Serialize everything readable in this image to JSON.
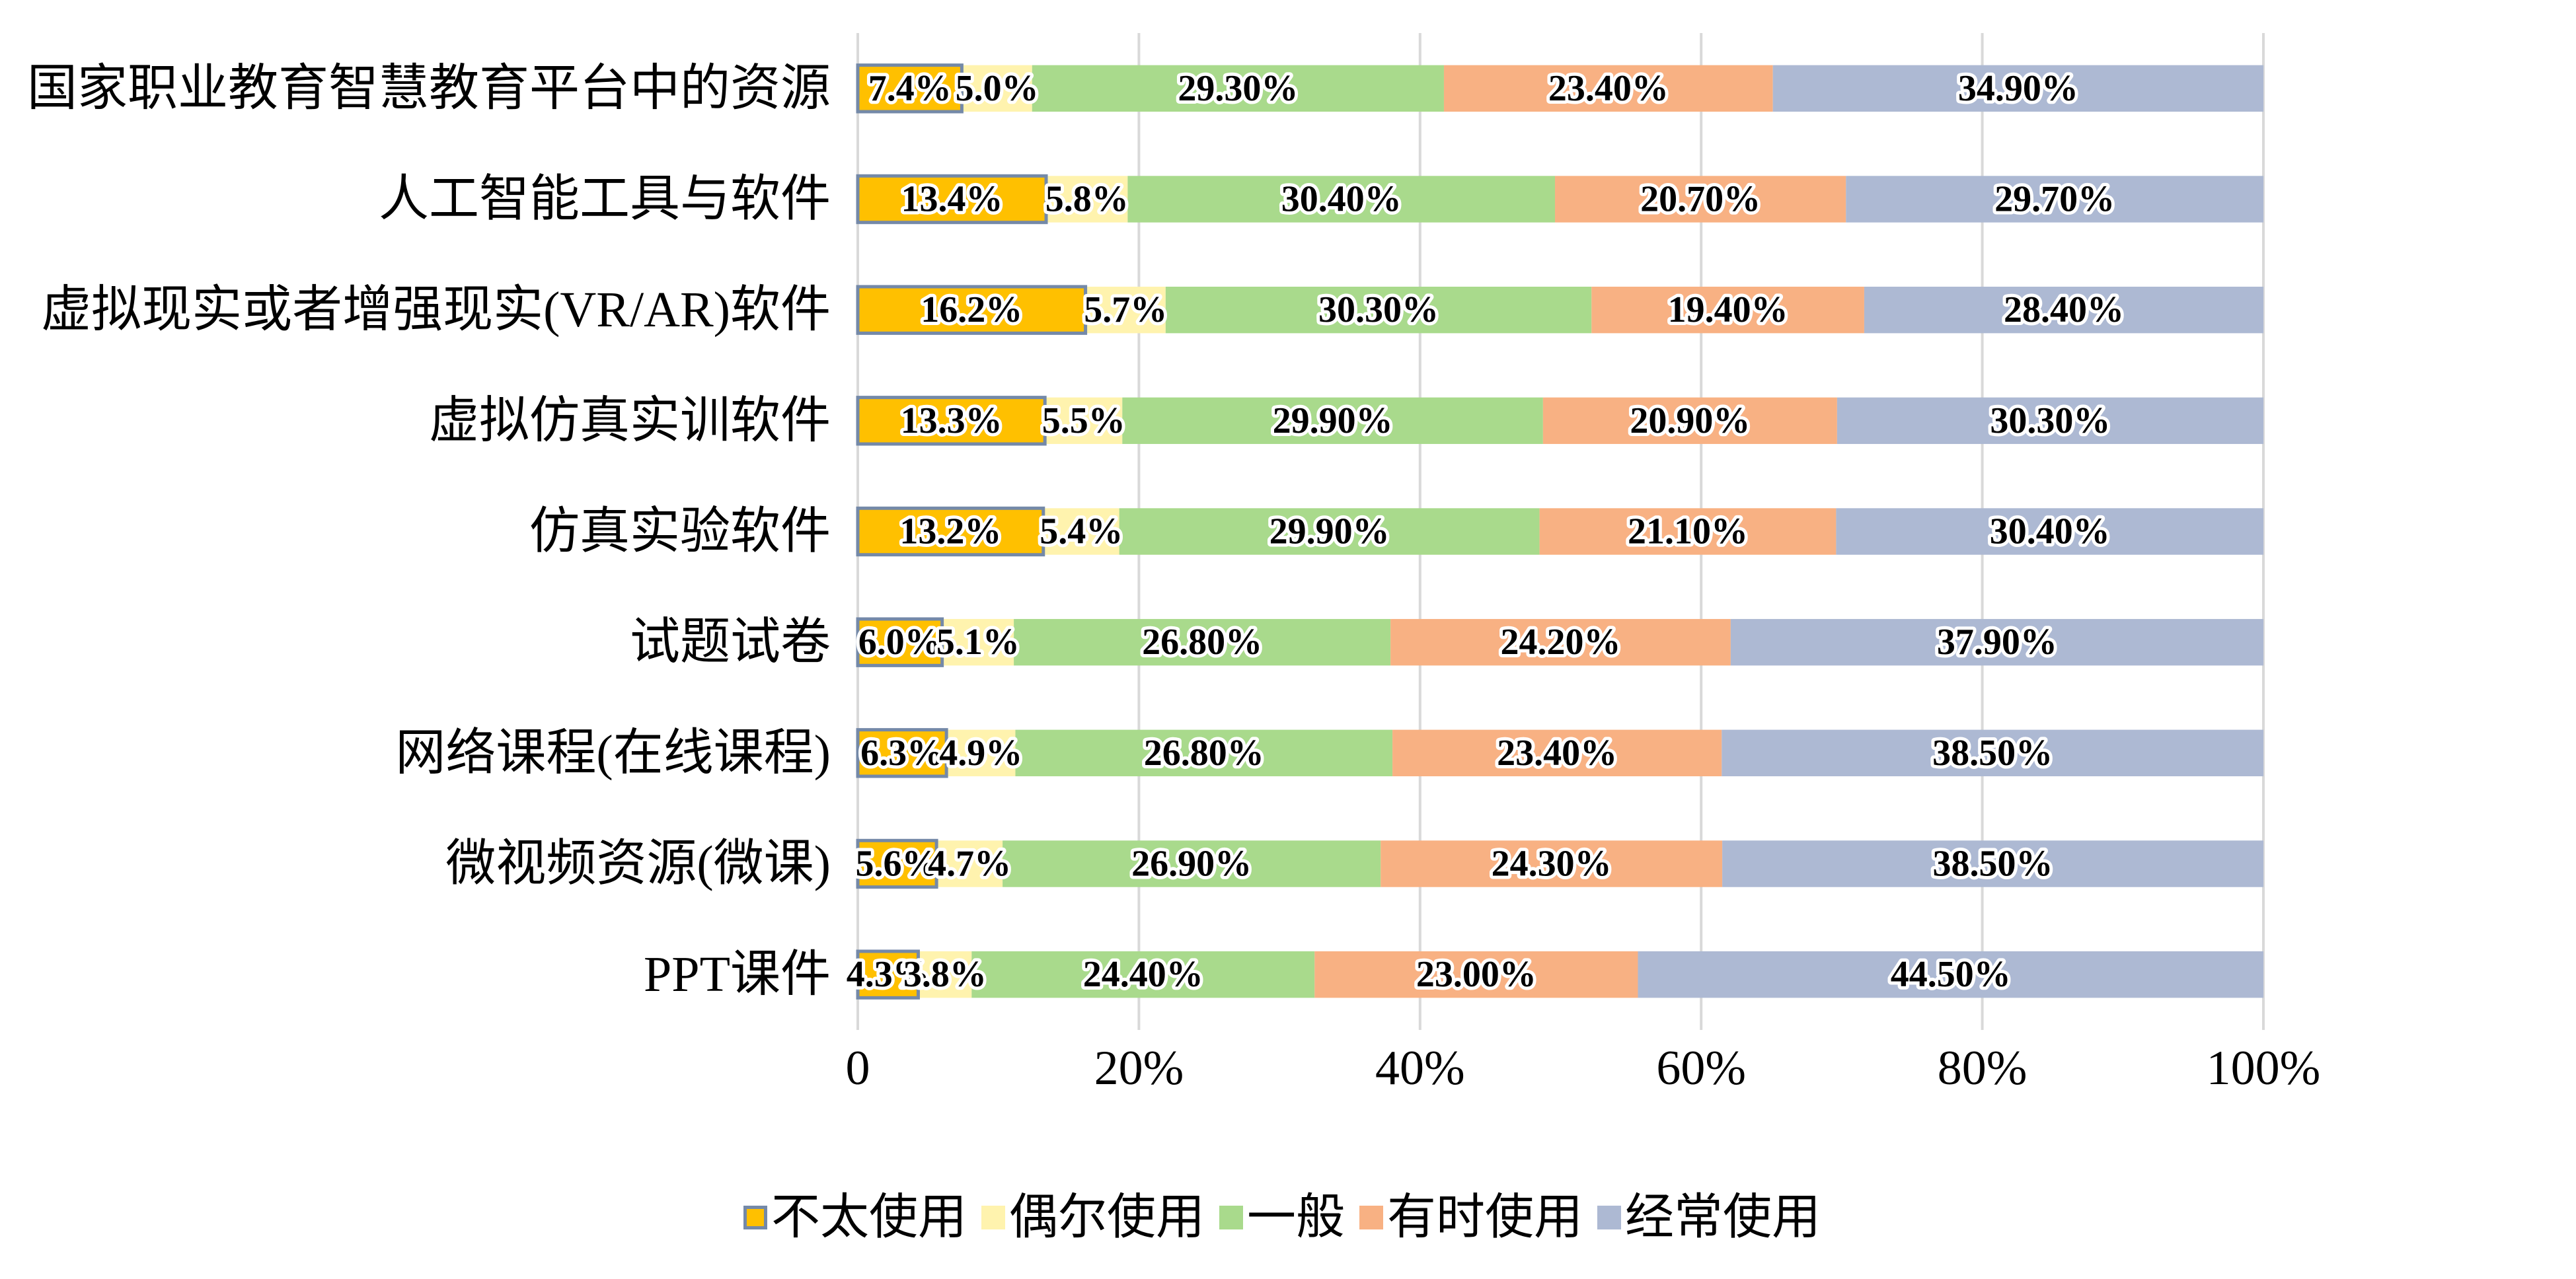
{
  "chart_data": {
    "type": "bar",
    "orientation": "horizontal",
    "stacking": "percent",
    "categories": [
      "国家职业教育智慧教育平台中的资源",
      "人工智能工具与软件",
      "虚拟现实或者增强现实(VR/AR)软件",
      "虚拟仿真实训软件",
      "仿真实验软件",
      "试题试卷",
      "网络课程(在线课程)",
      "微视频资源(微课)",
      "PPT课件"
    ],
    "series": [
      {
        "name": "不太使用",
        "color": "#FFC000",
        "border_color": "#7489A8",
        "values": [
          7.4,
          13.4,
          16.2,
          13.3,
          13.2,
          6.0,
          6.3,
          5.6,
          4.3
        ],
        "labels": [
          "7.4%",
          "13.4%",
          "16.2%",
          "13.3%",
          "13.2%",
          "6.0%",
          "6.3%",
          "5.6%",
          "4.3%"
        ]
      },
      {
        "name": "偶尔使用",
        "color": "#FFF3AE",
        "values": [
          5.0,
          5.8,
          5.7,
          5.5,
          5.4,
          5.1,
          4.9,
          4.7,
          3.8
        ],
        "labels": [
          "5.0%",
          "5.8%",
          "5.7%",
          "5.5%",
          "5.4%",
          "5.1%",
          "4.9%",
          "4.7%",
          "3.8%"
        ]
      },
      {
        "name": "一般",
        "color": "#A9DA8C",
        "values": [
          29.3,
          30.4,
          30.3,
          29.9,
          29.9,
          26.8,
          26.8,
          26.9,
          24.4
        ],
        "labels": [
          "29.30%",
          "30.40%",
          "30.30%",
          "29.90%",
          "29.90%",
          "26.80%",
          "26.80%",
          "26.90%",
          "24.40%"
        ]
      },
      {
        "name": "有时使用",
        "color": "#F8B183",
        "values": [
          23.4,
          20.7,
          19.4,
          20.9,
          21.1,
          24.2,
          23.4,
          24.3,
          23.0
        ],
        "labels": [
          "23.40%",
          "20.70%",
          "19.40%",
          "20.90%",
          "21.10%",
          "24.20%",
          "23.40%",
          "24.30%",
          "23.00%"
        ]
      },
      {
        "name": "经常使用",
        "color": "#ADB9D3",
        "values": [
          34.9,
          29.7,
          28.4,
          30.3,
          30.4,
          37.9,
          38.5,
          38.5,
          44.5
        ],
        "labels": [
          "34.90%",
          "29.70%",
          "28.40%",
          "30.30%",
          "30.40%",
          "37.90%",
          "38.50%",
          "38.50%",
          "44.50%"
        ]
      }
    ],
    "x_ticks": [
      0,
      20,
      40,
      60,
      80,
      100
    ],
    "x_tick_labels": [
      "0",
      "20%",
      "40%",
      "60%",
      "80%",
      "100%"
    ],
    "xlim": [
      0,
      100
    ],
    "grid": "vertical",
    "gridline_color": "#D9D9D9",
    "legend_position": "bottom"
  }
}
